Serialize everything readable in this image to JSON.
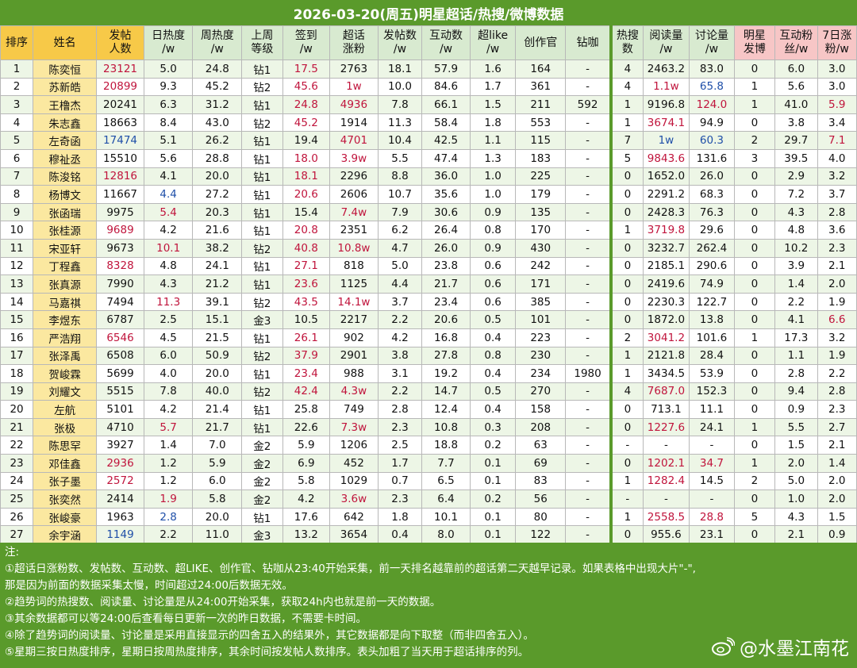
{
  "title": "2026-03-20(周五)明星超话/热搜/微博数据",
  "headers": [
    "排序",
    "姓名",
    "发帖人数",
    "日热度/w",
    "周热度/w",
    "上周等级",
    "签到/w",
    "超话涨粉",
    "发帖数/w",
    "互动数/w",
    "超like/w",
    "创作官",
    "钻咖",
    "热搜数",
    "阅读量/w",
    "讨论量/w",
    "明星发博",
    "互动粉丝/w",
    "7日涨粉/w"
  ],
  "rows": [
    [
      "1",
      "陈奕恒",
      "23121",
      "5.0",
      "24.8",
      "钻1",
      "17.5",
      "2763",
      "18.1",
      "57.9",
      "1.6",
      "164",
      "-",
      "4",
      "2463.2",
      "83.0",
      "0",
      "6.0",
      "3.0"
    ],
    [
      "2",
      "苏新皓",
      "20899",
      "9.3",
      "45.2",
      "钻2",
      "45.6",
      "1w",
      "10.0",
      "84.6",
      "1.7",
      "361",
      "-",
      "4",
      "1.1w",
      "65.8",
      "1",
      "5.6",
      "3.0"
    ],
    [
      "3",
      "王橹杰",
      "20241",
      "6.3",
      "31.2",
      "钻1",
      "24.8",
      "4936",
      "7.8",
      "66.1",
      "1.5",
      "211",
      "592",
      "1",
      "9196.8",
      "124.0",
      "1",
      "41.0",
      "5.9"
    ],
    [
      "4",
      "朱志鑫",
      "18663",
      "8.4",
      "43.0",
      "钻2",
      "45.2",
      "1914",
      "11.3",
      "58.4",
      "1.8",
      "553",
      "-",
      "1",
      "3674.1",
      "94.9",
      "0",
      "3.8",
      "3.4"
    ],
    [
      "5",
      "左奇函",
      "17474",
      "5.1",
      "26.2",
      "钻1",
      "19.4",
      "4701",
      "10.4",
      "42.5",
      "1.1",
      "115",
      "-",
      "7",
      "1w",
      "60.3",
      "2",
      "29.7",
      "7.1"
    ],
    [
      "6",
      "穆祉丞",
      "15510",
      "5.6",
      "28.8",
      "钻1",
      "18.0",
      "3.9w",
      "5.5",
      "47.4",
      "1.3",
      "183",
      "-",
      "5",
      "9843.6",
      "131.6",
      "3",
      "39.5",
      "4.0"
    ],
    [
      "7",
      "陈浚铭",
      "12816",
      "4.1",
      "20.0",
      "钻1",
      "18.1",
      "2296",
      "8.8",
      "36.0",
      "1.0",
      "225",
      "-",
      "0",
      "1652.0",
      "26.0",
      "0",
      "2.9",
      "3.2"
    ],
    [
      "8",
      "杨博文",
      "11667",
      "4.4",
      "27.2",
      "钻1",
      "20.6",
      "2606",
      "10.7",
      "35.6",
      "1.0",
      "179",
      "-",
      "0",
      "2291.2",
      "68.3",
      "0",
      "7.2",
      "3.7"
    ],
    [
      "9",
      "张函瑞",
      "9975",
      "5.4",
      "20.3",
      "钻1",
      "15.4",
      "7.4w",
      "7.9",
      "30.6",
      "0.9",
      "135",
      "-",
      "0",
      "2428.3",
      "76.3",
      "0",
      "4.3",
      "2.8"
    ],
    [
      "10",
      "张桂源",
      "9689",
      "4.2",
      "21.6",
      "钻1",
      "20.8",
      "2351",
      "6.2",
      "26.4",
      "0.8",
      "170",
      "-",
      "1",
      "3719.8",
      "29.6",
      "0",
      "4.8",
      "3.6"
    ],
    [
      "11",
      "宋亚轩",
      "9673",
      "10.1",
      "38.2",
      "钻2",
      "40.8",
      "10.8w",
      "4.7",
      "26.0",
      "0.9",
      "430",
      "-",
      "0",
      "3232.7",
      "262.4",
      "0",
      "10.2",
      "2.3"
    ],
    [
      "12",
      "丁程鑫",
      "8328",
      "4.8",
      "24.1",
      "钻1",
      "27.1",
      "818",
      "5.0",
      "23.8",
      "0.6",
      "242",
      "-",
      "0",
      "2185.1",
      "290.6",
      "0",
      "3.9",
      "2.1"
    ],
    [
      "13",
      "张真源",
      "7990",
      "4.3",
      "21.2",
      "钻1",
      "23.6",
      "1125",
      "4.4",
      "21.7",
      "0.6",
      "171",
      "-",
      "0",
      "2419.6",
      "74.9",
      "0",
      "1.4",
      "2.0"
    ],
    [
      "14",
      "马嘉祺",
      "7494",
      "11.3",
      "39.1",
      "钻2",
      "43.5",
      "14.1w",
      "3.7",
      "23.4",
      "0.6",
      "385",
      "-",
      "0",
      "2230.3",
      "122.7",
      "0",
      "2.2",
      "1.9"
    ],
    [
      "15",
      "李煜东",
      "6787",
      "2.5",
      "15.1",
      "金3",
      "10.5",
      "2217",
      "2.2",
      "20.6",
      "0.5",
      "101",
      "-",
      "0",
      "1872.0",
      "13.8",
      "0",
      "4.1",
      "6.6"
    ],
    [
      "16",
      "严浩翔",
      "6546",
      "4.5",
      "21.5",
      "钻1",
      "26.1",
      "902",
      "4.2",
      "16.8",
      "0.4",
      "223",
      "-",
      "2",
      "3041.2",
      "101.6",
      "1",
      "17.3",
      "3.2"
    ],
    [
      "17",
      "张泽禹",
      "6508",
      "6.0",
      "50.9",
      "钻2",
      "37.9",
      "2901",
      "3.8",
      "27.8",
      "0.8",
      "230",
      "-",
      "1",
      "2121.8",
      "28.4",
      "0",
      "1.1",
      "1.9"
    ],
    [
      "18",
      "贺峻霖",
      "5699",
      "4.0",
      "20.0",
      "钻1",
      "23.4",
      "988",
      "3.1",
      "19.2",
      "0.4",
      "234",
      "1980",
      "1",
      "3434.5",
      "53.9",
      "0",
      "2.8",
      "2.2"
    ],
    [
      "19",
      "刘耀文",
      "5515",
      "7.8",
      "40.0",
      "钻2",
      "42.4",
      "4.3w",
      "2.2",
      "14.7",
      "0.5",
      "270",
      "-",
      "4",
      "7687.0",
      "152.3",
      "0",
      "9.4",
      "2.8"
    ],
    [
      "20",
      "左航",
      "5101",
      "4.2",
      "21.4",
      "钻1",
      "25.8",
      "749",
      "2.8",
      "12.4",
      "0.4",
      "158",
      "-",
      "0",
      "713.1",
      "11.1",
      "0",
      "0.9",
      "2.3"
    ],
    [
      "21",
      "张极",
      "4710",
      "5.7",
      "21.7",
      "钻1",
      "22.6",
      "7.3w",
      "2.3",
      "10.8",
      "0.3",
      "208",
      "-",
      "0",
      "1227.6",
      "24.1",
      "1",
      "5.5",
      "2.7"
    ],
    [
      "22",
      "陈思罕",
      "3927",
      "1.4",
      "7.0",
      "金2",
      "5.9",
      "1206",
      "2.5",
      "18.8",
      "0.2",
      "63",
      "-",
      "-",
      "-",
      "-",
      "0",
      "1.5",
      "2.1"
    ],
    [
      "23",
      "邓佳鑫",
      "2936",
      "1.2",
      "5.9",
      "金2",
      "6.9",
      "452",
      "1.7",
      "7.7",
      "0.1",
      "69",
      "-",
      "0",
      "1202.1",
      "34.7",
      "1",
      "2.0",
      "1.4"
    ],
    [
      "24",
      "张子墨",
      "2572",
      "1.2",
      "6.0",
      "金2",
      "5.8",
      "1029",
      "0.7",
      "6.5",
      "0.1",
      "83",
      "-",
      "1",
      "1282.4",
      "14.5",
      "2",
      "5.0",
      "2.0"
    ],
    [
      "25",
      "张奕然",
      "2414",
      "1.9",
      "5.8",
      "金2",
      "4.2",
      "3.6w",
      "2.3",
      "6.4",
      "0.2",
      "56",
      "-",
      "-",
      "-",
      "-",
      "0",
      "1.0",
      "2.0"
    ],
    [
      "26",
      "张峻豪",
      "1963",
      "2.8",
      "20.0",
      "钻1",
      "17.6",
      "642",
      "1.8",
      "10.1",
      "0.1",
      "80",
      "-",
      "1",
      "2558.5",
      "28.8",
      "5",
      "4.3",
      "1.5"
    ],
    [
      "27",
      "余宇涵",
      "1149",
      "2.2",
      "11.0",
      "金3",
      "13.2",
      "3654",
      "0.4",
      "8.0",
      "0.1",
      "122",
      "-",
      "0",
      "955.6",
      "23.1",
      "0",
      "2.1",
      "0.9"
    ]
  ],
  "notes": {
    "heading": "注:",
    "lines": [
      "①超话日涨粉数、发帖数、互动数、超LIKE、创作官、钻咖从23:40开始采集，前一天排名越靠前的超话第二天越早记录。如果表格中出现大片\"-\",",
      "那是因为前面的数据采集太慢，时间超过24:00后数据无效。",
      "②趋势词的热搜数、阅读量、讨论量是从24:00开始采集，获取24h内也就是前一天的数据。",
      "③其余数据都可以等24:00后查看每日更新一次的昨日数据，不需要卡时间。",
      "④除了趋势词的阅读量、讨论量是采用直接显示的四舍五入的结果外，其它数据都是向下取整（而非四舍五入）。",
      "⑤星期三按日热度排序，星期日按周热度排序，其余时间按发帖人数排序。表头加粗了当天用于超话排序的列。"
    ]
  },
  "watermark": "@水墨江南花",
  "colors": {
    "banner_green": "#5a9a2b",
    "header_yellow": "#f7c948",
    "name_yellow": "#fbe8a0",
    "red_text": "#c0143c",
    "blue_text": "#1f4fa8",
    "row_tint": "#edf6e6",
    "header_pink": "#f7c6c6"
  }
}
